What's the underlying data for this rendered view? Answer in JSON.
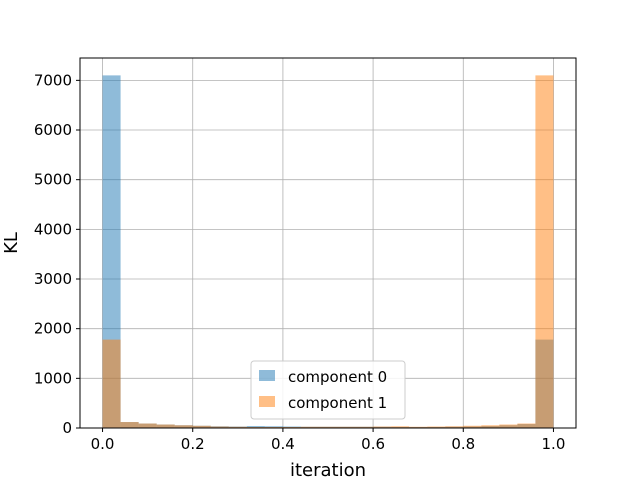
{
  "chart_data": {
    "type": "bar",
    "title": "",
    "xlabel": "iteration",
    "ylabel": "KL",
    "xlim": [
      -0.05,
      1.05
    ],
    "ylim": [
      0,
      7450
    ],
    "xticks": [
      0.0,
      0.2,
      0.4,
      0.6,
      0.8,
      1.0
    ],
    "xtick_labels": [
      "0.0",
      "0.2",
      "0.4",
      "0.6",
      "0.8",
      "1.0"
    ],
    "yticks": [
      0,
      1000,
      2000,
      3000,
      4000,
      5000,
      6000,
      7000
    ],
    "ytick_labels": [
      "0",
      "1000",
      "2000",
      "3000",
      "4000",
      "5000",
      "6000",
      "7000"
    ],
    "grid": true,
    "legend_position": "bottom-center",
    "bin_edges": [
      0.0,
      0.04,
      0.08,
      0.12,
      0.16,
      0.2,
      0.24,
      0.28,
      0.32,
      0.36,
      0.4,
      0.44,
      0.48,
      0.52,
      0.56,
      0.6,
      0.64,
      0.68,
      0.72,
      0.76,
      0.8,
      0.84,
      0.88,
      0.92,
      0.96,
      1.0
    ],
    "series": [
      {
        "name": "component 0",
        "color": "#1f77b4",
        "opacity": 0.5,
        "values": [
          7100,
          120,
          90,
          70,
          55,
          45,
          35,
          30,
          40,
          35,
          30,
          25,
          25,
          25,
          25,
          25,
          20,
          20,
          20,
          25,
          30,
          40,
          55,
          80,
          1780
        ]
      },
      {
        "name": "component 1",
        "color": "#ff7f0e",
        "opacity": 0.5,
        "values": [
          1780,
          120,
          90,
          70,
          55,
          45,
          30,
          25,
          20,
          20,
          20,
          25,
          25,
          25,
          25,
          30,
          35,
          25,
          30,
          35,
          45,
          55,
          70,
          90,
          7100
        ]
      }
    ]
  }
}
